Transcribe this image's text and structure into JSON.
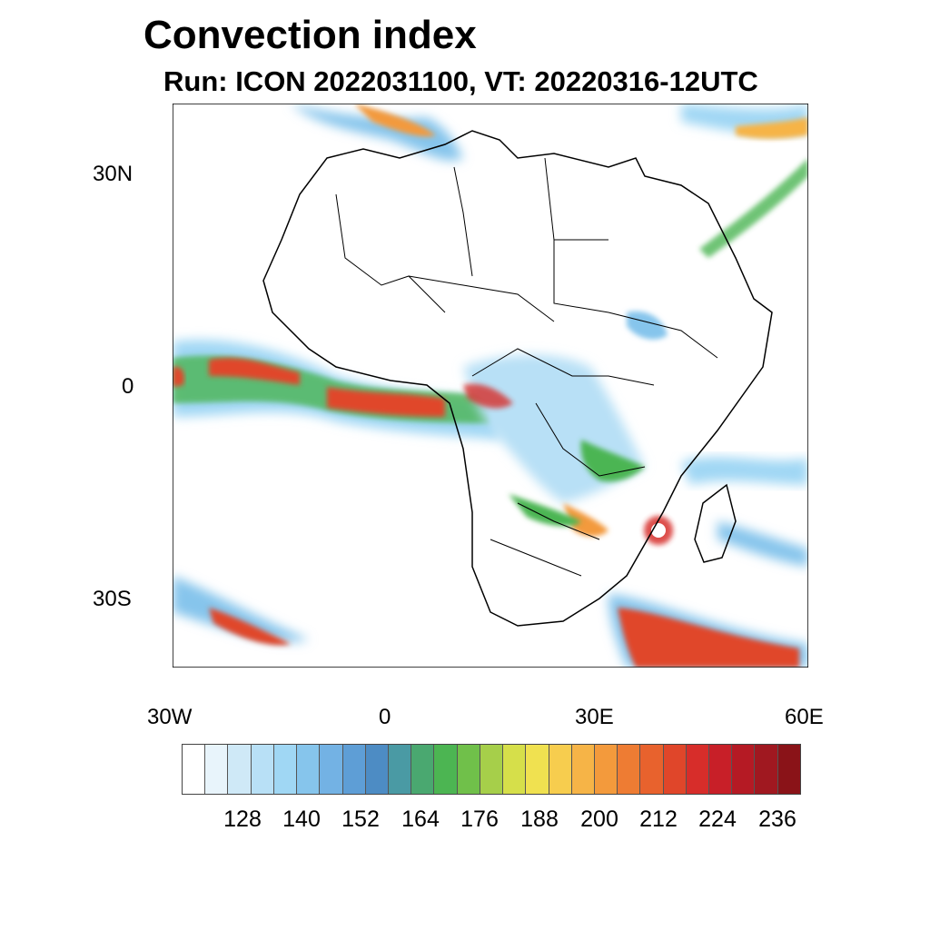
{
  "title": "Convection index",
  "subtitle": "Run: ICON 2022031100,  VT: 20220316-12UTC",
  "map": {
    "region": "Africa",
    "field": "Convection index",
    "lat_labels": [
      "30N",
      "0",
      "30S"
    ],
    "lon_labels": [
      "30W",
      "0",
      "30E",
      "60E"
    ]
  },
  "colorbar": {
    "labels": [
      "128",
      "140",
      "152",
      "164",
      "176",
      "188",
      "200",
      "212",
      "224",
      "236"
    ],
    "colors": [
      "#ffffff",
      "#e8f4fb",
      "#cfe9f7",
      "#b8e0f6",
      "#a0d7f4",
      "#86c5ec",
      "#73b2e4",
      "#5e9ed6",
      "#4d8cc4",
      "#4a9aa4",
      "#4aa870",
      "#4cb552",
      "#70c04a",
      "#a6cf4a",
      "#d6df4a",
      "#f0e150",
      "#f7cd4e",
      "#f6b447",
      "#f39a3c",
      "#ee7c33",
      "#e8622d",
      "#e0462a",
      "#d72d2a",
      "#c81f28",
      "#b51a24",
      "#a01820",
      "#8a1318"
    ]
  }
}
